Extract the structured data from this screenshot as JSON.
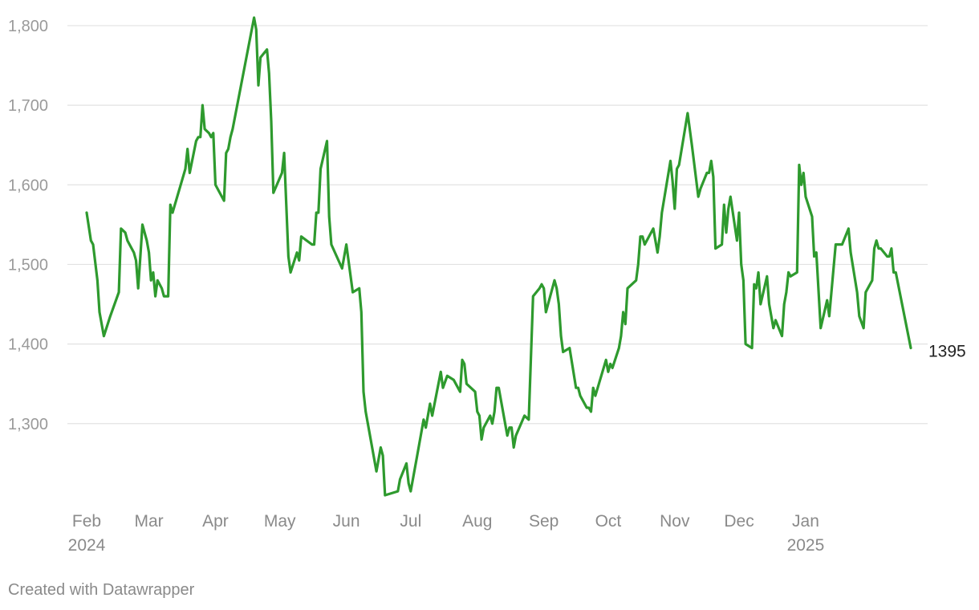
{
  "chart_data": {
    "type": "line",
    "title": "",
    "xlabel": "",
    "ylabel": "",
    "x_range": [
      "2024-01-29",
      "2025-02-01"
    ],
    "ylim": [
      1205,
      1810
    ],
    "grid": true,
    "legend": "none",
    "line_color": "#2e9a2e",
    "y_ticks": [
      {
        "value": 1300,
        "label": "1,300"
      },
      {
        "value": 1400,
        "label": "1,400"
      },
      {
        "value": 1500,
        "label": "1,500"
      },
      {
        "value": 1600,
        "label": "1,600"
      },
      {
        "value": 1700,
        "label": "1,700"
      },
      {
        "value": 1800,
        "label": "1,800"
      }
    ],
    "x_ticks": [
      {
        "date": "2024-02-01",
        "label": "Feb",
        "year": "2024"
      },
      {
        "date": "2024-03-01",
        "label": "Mar",
        "year": ""
      },
      {
        "date": "2024-04-01",
        "label": "Apr",
        "year": ""
      },
      {
        "date": "2024-05-01",
        "label": "May",
        "year": ""
      },
      {
        "date": "2024-06-01",
        "label": "Jun",
        "year": ""
      },
      {
        "date": "2024-07-01",
        "label": "Jul",
        "year": ""
      },
      {
        "date": "2024-08-01",
        "label": "Aug",
        "year": ""
      },
      {
        "date": "2024-09-01",
        "label": "Sep",
        "year": ""
      },
      {
        "date": "2024-10-01",
        "label": "Oct",
        "year": ""
      },
      {
        "date": "2024-11-01",
        "label": "Nov",
        "year": ""
      },
      {
        "date": "2024-12-01",
        "label": "Dec",
        "year": ""
      },
      {
        "date": "2025-01-01",
        "label": "Jan",
        "year": "2025"
      }
    ],
    "end_label": "1395",
    "series": [
      {
        "points": [
          [
            "2024-02-01",
            1565
          ],
          [
            "2024-02-03",
            1530
          ],
          [
            "2024-02-04",
            1525
          ],
          [
            "2024-02-06",
            1480
          ],
          [
            "2024-02-07",
            1440
          ],
          [
            "2024-02-09",
            1410
          ],
          [
            "2024-02-12",
            1435
          ],
          [
            "2024-02-16",
            1465
          ],
          [
            "2024-02-17",
            1545
          ],
          [
            "2024-02-19",
            1540
          ],
          [
            "2024-02-20",
            1530
          ],
          [
            "2024-02-23",
            1515
          ],
          [
            "2024-02-24",
            1505
          ],
          [
            "2024-02-25",
            1470
          ],
          [
            "2024-02-26",
            1510
          ],
          [
            "2024-02-27",
            1550
          ],
          [
            "2024-02-29",
            1530
          ],
          [
            "2024-03-01",
            1515
          ],
          [
            "2024-03-02",
            1480
          ],
          [
            "2024-03-03",
            1490
          ],
          [
            "2024-03-04",
            1460
          ],
          [
            "2024-03-05",
            1480
          ],
          [
            "2024-03-07",
            1470
          ],
          [
            "2024-03-08",
            1460
          ],
          [
            "2024-03-10",
            1460
          ],
          [
            "2024-03-11",
            1575
          ],
          [
            "2024-03-12",
            1565
          ],
          [
            "2024-03-18",
            1620
          ],
          [
            "2024-03-19",
            1645
          ],
          [
            "2024-03-20",
            1615
          ],
          [
            "2024-03-23",
            1655
          ],
          [
            "2024-03-24",
            1660
          ],
          [
            "2024-03-25",
            1660
          ],
          [
            "2024-03-26",
            1700
          ],
          [
            "2024-03-27",
            1670
          ],
          [
            "2024-03-29",
            1665
          ],
          [
            "2024-03-30",
            1660
          ],
          [
            "2024-03-31",
            1665
          ],
          [
            "2024-04-01",
            1600
          ],
          [
            "2024-04-05",
            1580
          ],
          [
            "2024-04-06",
            1640
          ],
          [
            "2024-04-07",
            1645
          ],
          [
            "2024-04-08",
            1660
          ],
          [
            "2024-04-09",
            1670
          ],
          [
            "2024-04-19",
            1810
          ],
          [
            "2024-04-20",
            1795
          ],
          [
            "2024-04-21",
            1725
          ],
          [
            "2024-04-22",
            1760
          ],
          [
            "2024-04-25",
            1770
          ],
          [
            "2024-04-26",
            1740
          ],
          [
            "2024-04-27",
            1680
          ],
          [
            "2024-04-28",
            1590
          ],
          [
            "2024-05-02",
            1615
          ],
          [
            "2024-05-03",
            1640
          ],
          [
            "2024-05-05",
            1510
          ],
          [
            "2024-05-06",
            1490
          ],
          [
            "2024-05-09",
            1515
          ],
          [
            "2024-05-10",
            1505
          ],
          [
            "2024-05-11",
            1535
          ],
          [
            "2024-05-16",
            1525
          ],
          [
            "2024-05-17",
            1525
          ],
          [
            "2024-05-18",
            1565
          ],
          [
            "2024-05-19",
            1565
          ],
          [
            "2024-05-20",
            1620
          ],
          [
            "2024-05-23",
            1655
          ],
          [
            "2024-05-24",
            1560
          ],
          [
            "2024-05-25",
            1525
          ],
          [
            "2024-05-30",
            1495
          ],
          [
            "2024-06-01",
            1525
          ],
          [
            "2024-06-04",
            1465
          ],
          [
            "2024-06-07",
            1470
          ],
          [
            "2024-06-08",
            1440
          ],
          [
            "2024-06-09",
            1340
          ],
          [
            "2024-06-10",
            1315
          ],
          [
            "2024-06-11",
            1300
          ],
          [
            "2024-06-15",
            1240
          ],
          [
            "2024-06-17",
            1270
          ],
          [
            "2024-06-18",
            1260
          ],
          [
            "2024-06-19",
            1210
          ],
          [
            "2024-06-25",
            1215
          ],
          [
            "2024-06-26",
            1230
          ],
          [
            "2024-06-29",
            1250
          ],
          [
            "2024-06-30",
            1225
          ],
          [
            "2024-07-01",
            1215
          ],
          [
            "2024-07-04",
            1260
          ],
          [
            "2024-07-07",
            1305
          ],
          [
            "2024-07-08",
            1295
          ],
          [
            "2024-07-10",
            1325
          ],
          [
            "2024-07-11",
            1310
          ],
          [
            "2024-07-15",
            1365
          ],
          [
            "2024-07-16",
            1345
          ],
          [
            "2024-07-18",
            1360
          ],
          [
            "2024-07-21",
            1355
          ],
          [
            "2024-07-24",
            1340
          ],
          [
            "2024-07-25",
            1380
          ],
          [
            "2024-07-26",
            1375
          ],
          [
            "2024-07-27",
            1350
          ],
          [
            "2024-07-31",
            1340
          ],
          [
            "2024-08-01",
            1315
          ],
          [
            "2024-08-02",
            1310
          ],
          [
            "2024-08-03",
            1280
          ],
          [
            "2024-08-04",
            1295
          ],
          [
            "2024-08-07",
            1310
          ],
          [
            "2024-08-08",
            1300
          ],
          [
            "2024-08-09",
            1315
          ],
          [
            "2024-08-10",
            1345
          ],
          [
            "2024-08-11",
            1345
          ],
          [
            "2024-08-15",
            1285
          ],
          [
            "2024-08-16",
            1295
          ],
          [
            "2024-08-17",
            1295
          ],
          [
            "2024-08-18",
            1270
          ],
          [
            "2024-08-19",
            1285
          ],
          [
            "2024-08-23",
            1310
          ],
          [
            "2024-08-25",
            1305
          ],
          [
            "2024-08-27",
            1460
          ],
          [
            "2024-08-30",
            1470
          ],
          [
            "2024-08-31",
            1475
          ],
          [
            "2024-09-01",
            1470
          ],
          [
            "2024-09-02",
            1440
          ],
          [
            "2024-09-06",
            1480
          ],
          [
            "2024-09-07",
            1470
          ],
          [
            "2024-09-08",
            1450
          ],
          [
            "2024-09-09",
            1410
          ],
          [
            "2024-09-10",
            1390
          ],
          [
            "2024-09-13",
            1395
          ],
          [
            "2024-09-16",
            1345
          ],
          [
            "2024-09-17",
            1345
          ],
          [
            "2024-09-18",
            1335
          ],
          [
            "2024-09-21",
            1320
          ],
          [
            "2024-09-22",
            1320
          ],
          [
            "2024-09-23",
            1315
          ],
          [
            "2024-09-24",
            1345
          ],
          [
            "2024-09-25",
            1335
          ],
          [
            "2024-09-30",
            1380
          ],
          [
            "2024-10-01",
            1365
          ],
          [
            "2024-10-02",
            1375
          ],
          [
            "2024-10-03",
            1370
          ],
          [
            "2024-10-06",
            1395
          ],
          [
            "2024-10-07",
            1410
          ],
          [
            "2024-10-08",
            1440
          ],
          [
            "2024-10-09",
            1425
          ],
          [
            "2024-10-10",
            1470
          ],
          [
            "2024-10-14",
            1480
          ],
          [
            "2024-10-15",
            1500
          ],
          [
            "2024-10-16",
            1535
          ],
          [
            "2024-10-17",
            1535
          ],
          [
            "2024-10-18",
            1525
          ],
          [
            "2024-10-22",
            1545
          ],
          [
            "2024-10-24",
            1515
          ],
          [
            "2024-10-25",
            1535
          ],
          [
            "2024-10-26",
            1565
          ],
          [
            "2024-10-30",
            1630
          ],
          [
            "2024-10-31",
            1605
          ],
          [
            "2024-11-01",
            1570
          ],
          [
            "2024-11-02",
            1620
          ],
          [
            "2024-11-03",
            1625
          ],
          [
            "2024-11-07",
            1690
          ],
          [
            "2024-11-09",
            1650
          ],
          [
            "2024-11-12",
            1585
          ],
          [
            "2024-11-13",
            1595
          ],
          [
            "2024-11-16",
            1615
          ],
          [
            "2024-11-17",
            1615
          ],
          [
            "2024-11-18",
            1630
          ],
          [
            "2024-11-19",
            1610
          ],
          [
            "2024-11-20",
            1520
          ],
          [
            "2024-11-23",
            1525
          ],
          [
            "2024-11-24",
            1575
          ],
          [
            "2024-11-25",
            1540
          ],
          [
            "2024-11-26",
            1570
          ],
          [
            "2024-11-27",
            1585
          ],
          [
            "2024-11-30",
            1530
          ],
          [
            "2024-12-01",
            1565
          ],
          [
            "2024-12-02",
            1500
          ],
          [
            "2024-12-03",
            1480
          ],
          [
            "2024-12-04",
            1400
          ],
          [
            "2024-12-07",
            1395
          ],
          [
            "2024-12-08",
            1475
          ],
          [
            "2024-12-09",
            1470
          ],
          [
            "2024-12-10",
            1490
          ],
          [
            "2024-12-11",
            1450
          ],
          [
            "2024-12-14",
            1485
          ],
          [
            "2024-12-15",
            1450
          ],
          [
            "2024-12-17",
            1420
          ],
          [
            "2024-12-18",
            1430
          ],
          [
            "2024-12-21",
            1410
          ],
          [
            "2024-12-22",
            1450
          ],
          [
            "2024-12-23",
            1465
          ],
          [
            "2024-12-24",
            1490
          ],
          [
            "2024-12-25",
            1485
          ],
          [
            "2024-12-28",
            1490
          ],
          [
            "2024-12-29",
            1625
          ],
          [
            "2024-12-30",
            1600
          ],
          [
            "2024-12-31",
            1615
          ],
          [
            "2025-01-01",
            1585
          ],
          [
            "2025-01-04",
            1560
          ],
          [
            "2025-01-05",
            1510
          ],
          [
            "2025-01-06",
            1515
          ],
          [
            "2025-01-08",
            1420
          ],
          [
            "2025-01-11",
            1455
          ],
          [
            "2025-01-12",
            1435
          ],
          [
            "2025-01-15",
            1525
          ],
          [
            "2025-01-18",
            1525
          ],
          [
            "2025-01-21",
            1545
          ],
          [
            "2025-01-22",
            1515
          ],
          [
            "2025-01-25",
            1465
          ],
          [
            "2025-01-26",
            1435
          ],
          [
            "2025-01-28",
            1420
          ],
          [
            "2025-01-29",
            1465
          ],
          [
            "2025-02-01",
            1480
          ],
          [
            "2025-02-02",
            1520
          ],
          [
            "2025-02-03",
            1530
          ],
          [
            "2025-02-04",
            1520
          ],
          [
            "2025-02-05",
            1520
          ],
          [
            "2025-02-08",
            1510
          ],
          [
            "2025-02-09",
            1510
          ],
          [
            "2025-02-10",
            1520
          ],
          [
            "2025-02-11",
            1490
          ],
          [
            "2025-02-12",
            1490
          ],
          [
            "2025-02-19",
            1395
          ]
        ]
      }
    ]
  },
  "footer": {
    "credit": "Created with Datawrapper"
  }
}
